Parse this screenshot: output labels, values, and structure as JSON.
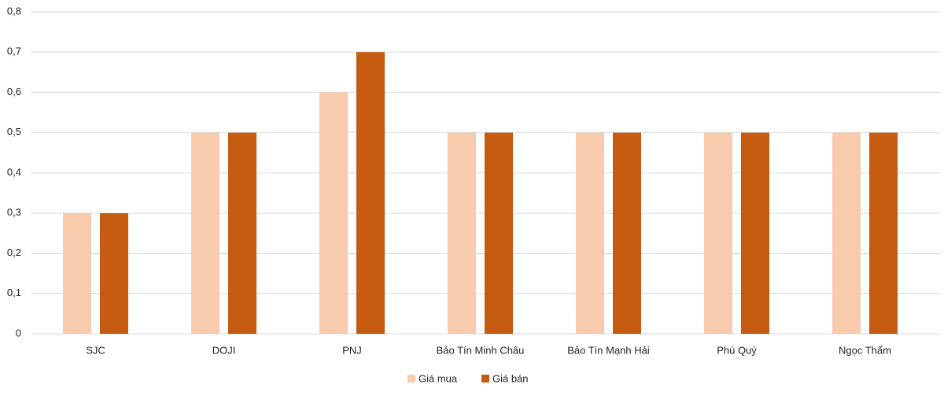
{
  "chart_data": {
    "type": "bar",
    "categories": [
      "SJC",
      "DOJI",
      "PNJ",
      "Bảo Tín Minh Châu",
      "Bảo Tín Mạnh Hải",
      "Phú Quý",
      "Ngọc Thẩm"
    ],
    "series": [
      {
        "name": "Giá mua",
        "color": "#f8cbad",
        "values": [
          0.3,
          0.5,
          0.6,
          0.5,
          0.5,
          0.5,
          0.5
        ]
      },
      {
        "name": "Giá bán",
        "color": "#c55a11",
        "values": [
          0.3,
          0.5,
          0.7,
          0.5,
          0.5,
          0.5,
          0.5
        ]
      }
    ],
    "ylim": [
      0,
      0.8
    ],
    "yticks": [
      0,
      {
        "value": 0.1,
        "label": "0,1"
      },
      {
        "value": 0.2,
        "label": "0,2"
      },
      {
        "value": 0.3,
        "label": "0,3"
      },
      {
        "value": 0.4,
        "label": "0,4"
      },
      {
        "value": 0.5,
        "label": "0,5"
      },
      {
        "value": 0.6,
        "label": "0,6"
      },
      {
        "value": 0.7,
        "label": "0,7"
      },
      {
        "value": 0.8,
        "label": "0,8"
      }
    ],
    "grid": true,
    "legend": "bottom"
  }
}
